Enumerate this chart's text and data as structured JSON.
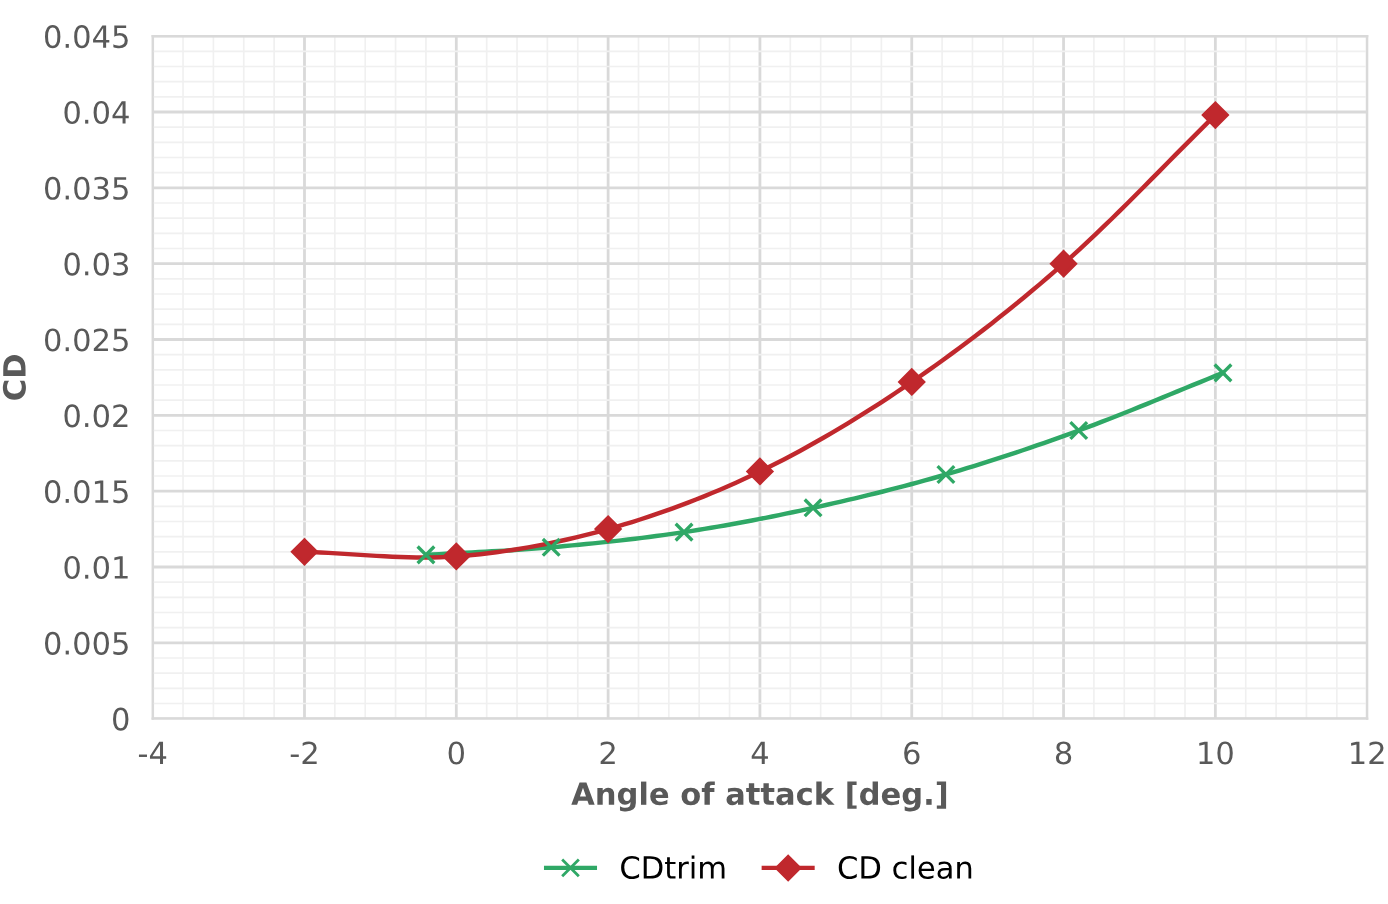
{
  "chart_data": {
    "type": "line",
    "xlabel": "Angle of attack [deg.]",
    "ylabel": "CD",
    "xlim": [
      -4,
      12
    ],
    "xticks": [
      -4,
      -2,
      0,
      2,
      4,
      6,
      8,
      10,
      12
    ],
    "ylim": [
      0,
      0.045
    ],
    "yticks": [
      0,
      0.005,
      0.01,
      0.015,
      0.02,
      0.025,
      0.03,
      0.035,
      0.04,
      0.045
    ],
    "grid": true,
    "legend": "bottom",
    "series": [
      {
        "name": "CDtrim",
        "color": "#2fa866",
        "marker": "cross",
        "x": [
          -0.4,
          1.25,
          3.0,
          4.7,
          6.45,
          8.2,
          10.1
        ],
        "values": [
          0.0108,
          0.0113,
          0.0123,
          0.0139,
          0.0161,
          0.019,
          0.0228
        ]
      },
      {
        "name": "CD clean",
        "color": "#c0282d",
        "marker": "diamond",
        "x": [
          -2,
          0,
          2,
          4,
          6,
          8,
          10
        ],
        "values": [
          0.011,
          0.0107,
          0.0125,
          0.0163,
          0.0222,
          0.03,
          0.0398
        ]
      }
    ]
  }
}
